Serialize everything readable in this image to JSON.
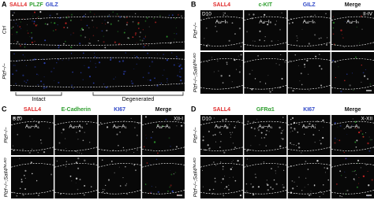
{
  "panels": [
    {
      "letter": "A",
      "channels": [
        {
          "text": "SALL4",
          "color": "#e02828"
        },
        {
          "text": "PLZF",
          "color": "#2e9e2e"
        },
        {
          "text": "GILZ",
          "color": "#3048c8"
        }
      ],
      "rows": [
        "Ctrl",
        "Plzf−/−"
      ],
      "regions": [
        "Intact",
        "Degenerated"
      ]
    },
    {
      "letter": "B",
      "channels": [
        {
          "text": "SALL4",
          "color": "#e02828"
        },
        {
          "text": "c-KIT",
          "color": "#2e9e2e"
        },
        {
          "text": "GILZ",
          "color": "#3048c8"
        },
        {
          "text": "Merge",
          "color": "#111111"
        }
      ],
      "stage": "D10",
      "cycle": "II-IV",
      "cell_label": "Aₐₗ–Iₙ",
      "rows": [
        "Plzf−/−",
        "Plzf−/−;Sall4ᶠᴹ-ᴷᴼ"
      ]
    },
    {
      "letter": "C",
      "channels": [
        {
          "text": "SALL4",
          "color": "#e02828"
        },
        {
          "text": "E-Cadherin",
          "color": "#2e9e2e"
        },
        {
          "text": "KI67",
          "color": "#3048c8"
        },
        {
          "text": "Merge",
          "color": "#111111"
        }
      ],
      "stage": "D10",
      "cycle": "XII-I",
      "cell_label": "Aₐₗ–A₁",
      "rows": [
        "Plzf−/−",
        "Plzf−/−;Sall4ᶠᴹ-ᴷᴼ"
      ]
    },
    {
      "letter": "D",
      "channels": [
        {
          "text": "SALL4",
          "color": "#e02828"
        },
        {
          "text": "GFRα1",
          "color": "#2e9e2e"
        },
        {
          "text": "KI67",
          "color": "#3048c8"
        },
        {
          "text": "Merge",
          "color": "#111111"
        }
      ],
      "stage": "D10",
      "cycle": "X-XII",
      "cell_label": "Aₐₗ–A₁",
      "rows": [
        "Plzf−/−",
        "Plzf−/−;Sall4ᶠᴹ-ᴷᴼ"
      ]
    }
  ]
}
